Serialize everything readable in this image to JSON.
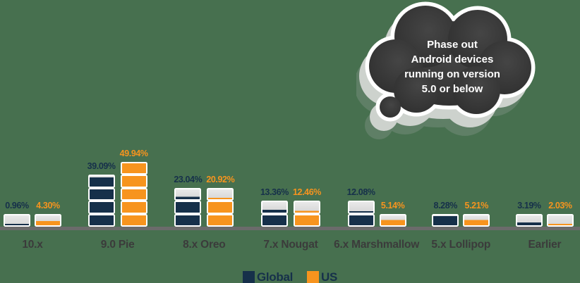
{
  "background_color": "#47704f",
  "chart_data": {
    "type": "bar",
    "title": "",
    "xlabel": "",
    "ylabel": "",
    "ylim": [
      0,
      50
    ],
    "grid": false,
    "legend_position": "bottom-center",
    "block_unit_percent": 10,
    "categories": [
      "10.x",
      "9.0 Pie",
      "8.x Oreo",
      "7.x Nougat",
      "6.x Marshmallow",
      "5.x Lollipop",
      "Earlier"
    ],
    "series": [
      {
        "name": "Global",
        "color": "#16304a",
        "values": [
          0.96,
          39.09,
          23.04,
          13.36,
          12.08,
          8.28,
          3.19
        ],
        "labels": [
          "0.96%",
          "39.09%",
          "23.04%",
          "13.36%",
          "12.08%",
          "8.28%",
          "3.19%"
        ]
      },
      {
        "name": "US",
        "color": "#f7941e",
        "values": [
          4.3,
          49.94,
          20.92,
          12.46,
          5.14,
          5.21,
          2.03
        ],
        "labels": [
          "4.30%",
          "49.94%",
          "20.92%",
          "12.46%",
          "5.14%",
          "5.21%",
          "2.03%"
        ]
      }
    ],
    "cap_color": "#d9d9d9",
    "axis_line_color": "#6b6b6b",
    "category_label_color": "#3b3b3b"
  },
  "legend": {
    "items": [
      {
        "label": "Global",
        "color": "#16304a"
      },
      {
        "label": "US",
        "color": "#f7941e"
      }
    ]
  },
  "annotation": {
    "lines": [
      "Phase out",
      "Android devices",
      "running on version",
      "5.0 or below"
    ],
    "fill_color": "#333333",
    "outline_color": "#ffffff",
    "text_color": "#ffffff"
  }
}
